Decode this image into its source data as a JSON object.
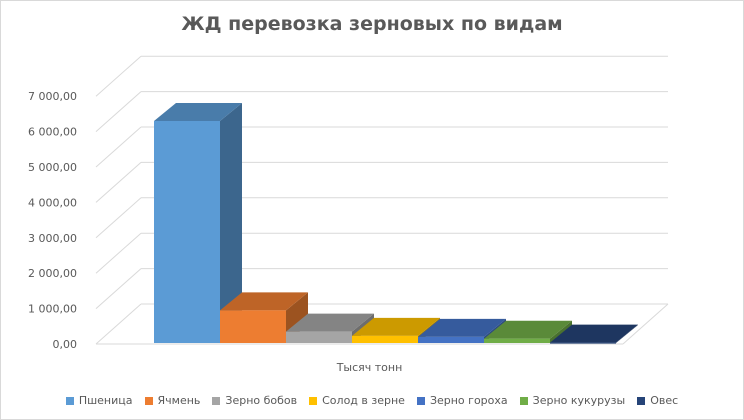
{
  "chart_data": {
    "type": "bar",
    "variant": "3d-clustered-column",
    "title": "ЖД перевозка зерновых по видам",
    "categories": [
      "Тысяч тонн"
    ],
    "ylim": [
      0,
      7000
    ],
    "ytick_labels": [
      "0,00",
      "1 000,00",
      "2 000,00",
      "3 000,00",
      "4 000,00",
      "5 000,00",
      "6 000,00",
      "7 000,00"
    ],
    "grid": true,
    "legend_position": "bottom",
    "series": [
      {
        "name": "Пшеница",
        "values": [
          6300
        ],
        "color": "#5b9bd5"
      },
      {
        "name": "Ячмень",
        "values": [
          950
        ],
        "color": "#ed7d31"
      },
      {
        "name": "Зерно бобов",
        "values": [
          350
        ],
        "color": "#a5a5a5"
      },
      {
        "name": "Солод в зерне",
        "values": [
          230
        ],
        "color": "#ffc000"
      },
      {
        "name": "Зерно гороха",
        "values": [
          200
        ],
        "color": "#4472c4"
      },
      {
        "name": "Зерно кукурузы",
        "values": [
          150
        ],
        "color": "#70ad47"
      },
      {
        "name": "Овес",
        "values": [
          40
        ],
        "color": "#264478"
      }
    ]
  }
}
